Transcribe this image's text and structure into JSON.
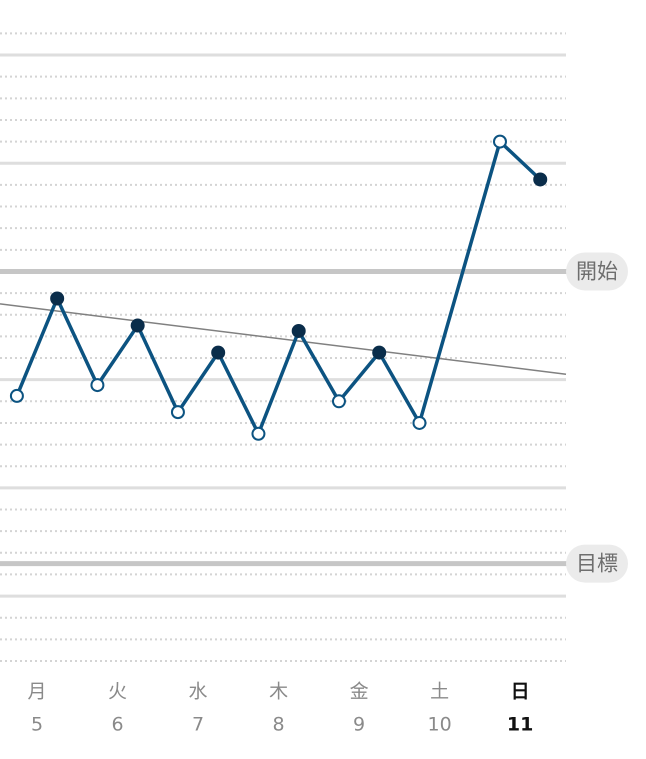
{
  "chart_data": {
    "type": "line",
    "x": [
      4.75,
      5.25,
      5.75,
      6.25,
      6.75,
      7.25,
      7.75,
      8.25,
      8.75,
      9.25,
      9.75,
      10.75,
      11.25
    ],
    "markers": [
      "open",
      "filled",
      "open",
      "filled",
      "open",
      "filled",
      "open",
      "filled",
      "open",
      "filled",
      "open",
      "open",
      "filled"
    ],
    "values": [
      61.85,
      62.75,
      61.95,
      62.5,
      61.7,
      62.25,
      61.5,
      62.45,
      61.8,
      62.25,
      61.6,
      64.2,
      63.85
    ],
    "color": "#0c5381",
    "filled_color": "#0a2d4a",
    "xlim": [
      4.54,
      11.57
    ],
    "ylim": [
      59.4,
      65.2
    ],
    "xticks": [
      5,
      6,
      7,
      8,
      9,
      10,
      11
    ],
    "weekdays": [
      "月",
      "火",
      "水",
      "木",
      "金",
      "土",
      "日"
    ],
    "current_day_index": 6,
    "yticks": [
      60,
      61,
      62,
      63,
      64,
      65
    ],
    "yminorticks": [
      59.4,
      59.6,
      59.8,
      60.2,
      60.4,
      60.6,
      60.8,
      61.2,
      61.4,
      61.6,
      61.8,
      62.2,
      62.4,
      62.6,
      62.8,
      63.2,
      63.4,
      63.6,
      63.8,
      64.2,
      64.4,
      64.6,
      64.8,
      65.2
    ],
    "trend": {
      "x": [
        4.54,
        11.57
      ],
      "values": [
        62.7,
        62.05
      ],
      "color": "#808080"
    },
    "reference_lines": [
      {
        "label": "開始",
        "value": 63.0
      },
      {
        "label": "目標",
        "value": 60.3
      }
    ],
    "grid": true
  }
}
